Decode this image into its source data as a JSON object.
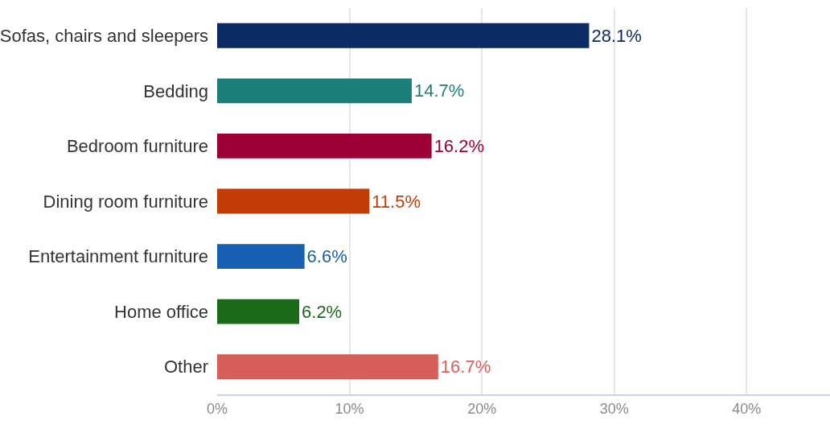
{
  "chart_data": {
    "type": "bar",
    "orientation": "horizontal",
    "categories": [
      "Sofas, chairs and sleepers",
      "Bedding",
      "Bedroom furniture",
      "Dining room furniture",
      "Entertainment furniture",
      "Home office",
      "Other"
    ],
    "values": [
      28.1,
      14.7,
      16.2,
      11.5,
      6.6,
      6.2,
      16.7
    ],
    "colors": [
      "#0b2a66",
      "#1b7f7a",
      "#9c0036",
      "#c23c06",
      "#175fb0",
      "#1a6a1a",
      "#d65f5b"
    ],
    "value_labels": [
      "28.1%",
      "14.7%",
      "16.2%",
      "11.5%",
      "6.6%",
      "6.2%",
      "16.7%"
    ],
    "xlim": [
      0,
      46.3
    ],
    "xticks": [
      {
        "value": 0,
        "label": "0%"
      },
      {
        "value": 10,
        "label": "10%"
      },
      {
        "value": 20,
        "label": "20%"
      },
      {
        "value": 30,
        "label": "30%"
      },
      {
        "value": 40,
        "label": "40%"
      }
    ],
    "grid": "x"
  }
}
